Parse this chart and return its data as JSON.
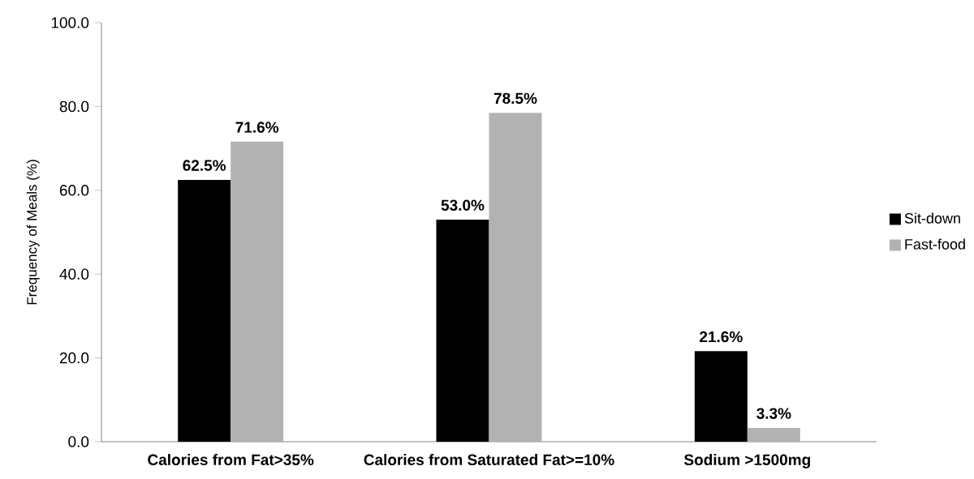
{
  "chart_data": {
    "type": "bar",
    "ylabel": "Frequency of Meals (%)",
    "categories": [
      "Calories from Fat>35%",
      "Calories from Saturated Fat>=10%",
      "Sodium >1500mg"
    ],
    "series": [
      {
        "name": "Sit-down",
        "color": "#000000",
        "values": [
          62.5,
          53.0,
          21.6
        ],
        "value_labels": [
          "62.5%",
          "53.0%",
          "21.6%"
        ]
      },
      {
        "name": "Fast-food",
        "color": "#b2b2b2",
        "values": [
          71.6,
          78.5,
          3.3
        ],
        "value_labels": [
          "71.6%",
          "78.5%",
          "3.3%"
        ]
      }
    ],
    "ylim": [
      0,
      100
    ],
    "yticks": [
      {
        "value": 0,
        "label": "0.0"
      },
      {
        "value": 20,
        "label": "20.0"
      },
      {
        "value": 40,
        "label": "40.0"
      },
      {
        "value": 60,
        "label": "60.0"
      },
      {
        "value": 80,
        "label": "80.0"
      },
      {
        "value": 100,
        "label": "100.0"
      }
    ],
    "legend": "right"
  }
}
